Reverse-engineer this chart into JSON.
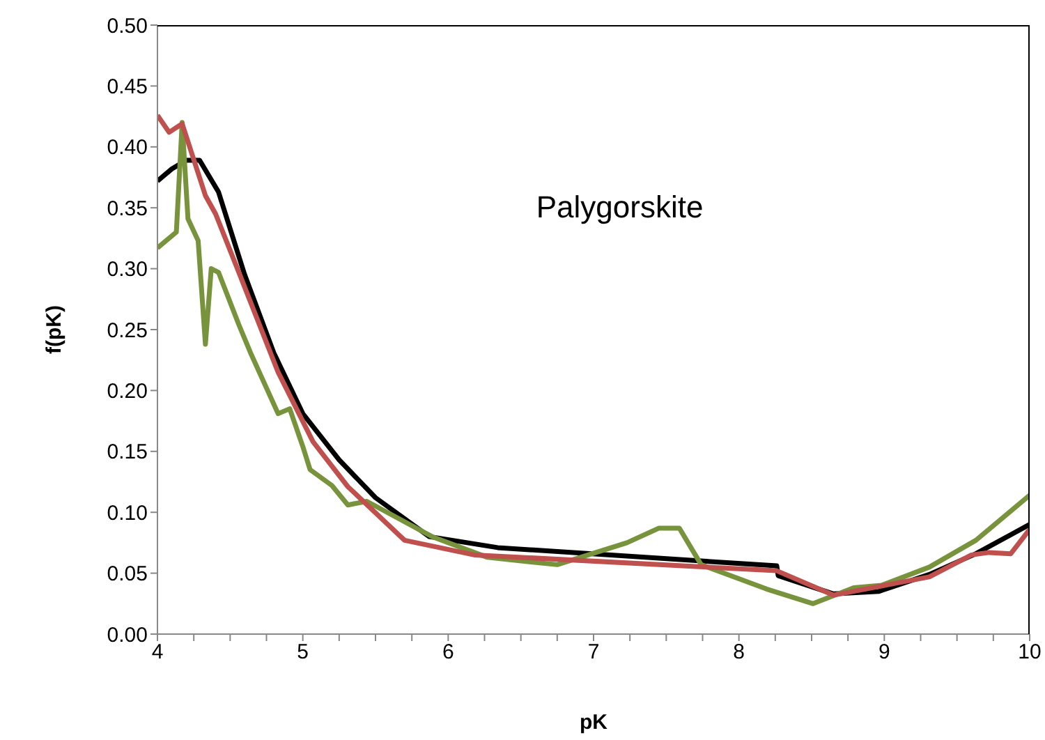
{
  "chart_data": {
    "type": "line",
    "xlabel": "pK",
    "ylabel": "f(pK)",
    "annotations": [
      "Palygorskite"
    ],
    "xlim": [
      4,
      10
    ],
    "xticks": [
      4,
      {
        "value": 4.25,
        "label": null
      },
      {
        "value": 4.5,
        "label": null
      },
      {
        "value": 4.75,
        "label": null
      },
      5,
      {
        "value": 5.25,
        "label": null
      },
      {
        "value": 5.5,
        "label": null
      },
      {
        "value": 5.75,
        "label": null
      },
      6,
      {
        "value": 6.25,
        "label": null
      },
      {
        "value": 6.5,
        "label": null
      },
      {
        "value": 6.75,
        "label": null
      },
      7,
      {
        "value": 7.25,
        "label": null
      },
      {
        "value": 7.5,
        "label": null
      },
      {
        "value": 7.75,
        "label": null
      },
      8,
      {
        "value": 8.25,
        "label": null
      },
      {
        "value": 8.5,
        "label": null
      },
      {
        "value": 8.75,
        "label": null
      },
      9,
      {
        "value": 9.25,
        "label": null
      },
      {
        "value": 9.5,
        "label": null
      },
      {
        "value": 9.75,
        "label": null
      },
      10
    ],
    "ylim": [
      0,
      0.5
    ],
    "yticks": [
      {
        "value": 0,
        "label": "0.00"
      },
      {
        "value": 0.05,
        "label": "0.05"
      },
      {
        "value": 0.1,
        "label": "0.10"
      },
      {
        "value": 0.15,
        "label": "0.15"
      },
      {
        "value": 0.2,
        "label": "0.20"
      },
      {
        "value": 0.25,
        "label": "0.25"
      },
      {
        "value": 0.3,
        "label": "0.30"
      },
      {
        "value": 0.35,
        "label": "0.35"
      },
      {
        "value": 0.4,
        "label": "0.40"
      },
      {
        "value": 0.45,
        "label": "0.45"
      },
      {
        "value": 0.5,
        "label": "0.50"
      }
    ],
    "grid": false,
    "legend": false,
    "marker": "none",
    "line_style": "solid",
    "series": [
      {
        "color": "#000000",
        "x": [
          4,
          4.1,
          4.2,
          4.29,
          4.42,
          4.6,
          4.8,
          5.0,
          5.25,
          5.5,
          5.87,
          6.34,
          8.26,
          8.27,
          8.65,
          8.96,
          9.31,
          9.63,
          10
        ],
        "values": [
          0.372,
          0.382,
          0.389,
          0.389,
          0.363,
          0.295,
          0.231,
          0.181,
          0.143,
          0.112,
          0.08,
          0.071,
          0.056,
          0.048,
          0.033,
          0.035,
          0.049,
          0.066,
          0.09
        ]
      },
      {
        "color": "#77933c",
        "x": [
          4,
          4.13,
          4.17,
          4.21,
          4.28,
          4.33,
          4.37,
          4.42,
          4.56,
          4.64,
          4.83,
          4.91,
          5.0,
          5.05,
          5.2,
          5.31,
          5.44,
          5.89,
          6.27,
          6.75,
          7.23,
          7.45,
          7.59,
          7.74,
          8.19,
          8.51,
          8.79,
          8.98,
          9.31,
          9.63,
          10
        ],
        "values": [
          0.317,
          0.33,
          0.42,
          0.341,
          0.323,
          0.238,
          0.3,
          0.297,
          0.254,
          0.231,
          0.181,
          0.185,
          0.154,
          0.135,
          0.122,
          0.106,
          0.109,
          0.08,
          0.063,
          0.057,
          0.075,
          0.087,
          0.087,
          0.057,
          0.037,
          0.025,
          0.038,
          0.04,
          0.055,
          0.077,
          0.114
        ]
      },
      {
        "color": "#c0504d",
        "x": [
          4,
          4.08,
          4.17,
          4.33,
          4.4,
          4.55,
          4.83,
          5.07,
          5.31,
          5.7,
          6.18,
          8.26,
          8.65,
          9.31,
          9.6,
          9.72,
          9.87,
          10
        ],
        "values": [
          0.426,
          0.412,
          0.419,
          0.36,
          0.345,
          0.3,
          0.215,
          0.158,
          0.121,
          0.077,
          0.065,
          0.052,
          0.032,
          0.047,
          0.065,
          0.067,
          0.066,
          0.086
        ]
      }
    ]
  }
}
